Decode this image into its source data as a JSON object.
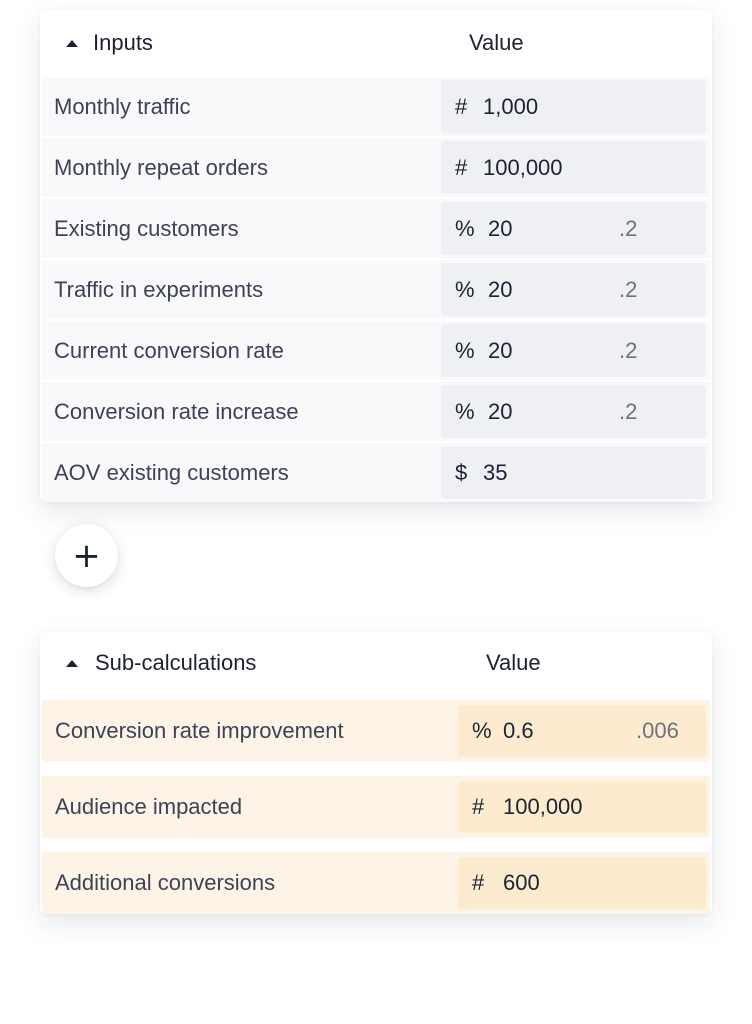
{
  "inputs": {
    "title": "Inputs",
    "value_header": "Value",
    "rows": [
      {
        "label": "Monthly traffic",
        "symbol": "#",
        "value": "1,000",
        "decimal": ""
      },
      {
        "label": "Monthly repeat orders",
        "symbol": "#",
        "value": "100,000",
        "decimal": ""
      },
      {
        "label": "Existing customers",
        "symbol": "%",
        "value": "20",
        "decimal": ".2"
      },
      {
        "label": "Traffic in experiments",
        "symbol": "%",
        "value": "20",
        "decimal": ".2"
      },
      {
        "label": "Current conversion rate",
        "symbol": "%",
        "value": "20",
        "decimal": ".2"
      },
      {
        "label": "Conversion rate increase",
        "symbol": "%",
        "value": "20",
        "decimal": ".2"
      },
      {
        "label": "AOV existing customers",
        "symbol": "$",
        "value": "35",
        "decimal": ""
      }
    ]
  },
  "add_button": {
    "icon": "plus-icon",
    "label": "+"
  },
  "subcalculations": {
    "title": "Sub-calculations",
    "value_header": "Value",
    "rows": [
      {
        "label": "Conversion rate improvement",
        "symbol": "%",
        "value": "0.6",
        "decimal": ".006"
      },
      {
        "label": "Audience impacted",
        "symbol": "#",
        "value": "100,000",
        "decimal": ""
      },
      {
        "label": "Additional conversions",
        "symbol": "#",
        "value": "600",
        "decimal": ""
      }
    ]
  },
  "colors": {
    "input_row_bg": "#f9f9fb",
    "input_value_bg": "#eef0f4",
    "sub_row_bg": "#fdf4e7",
    "sub_value_bg": "#fdebd0",
    "text": "#1d2233"
  }
}
